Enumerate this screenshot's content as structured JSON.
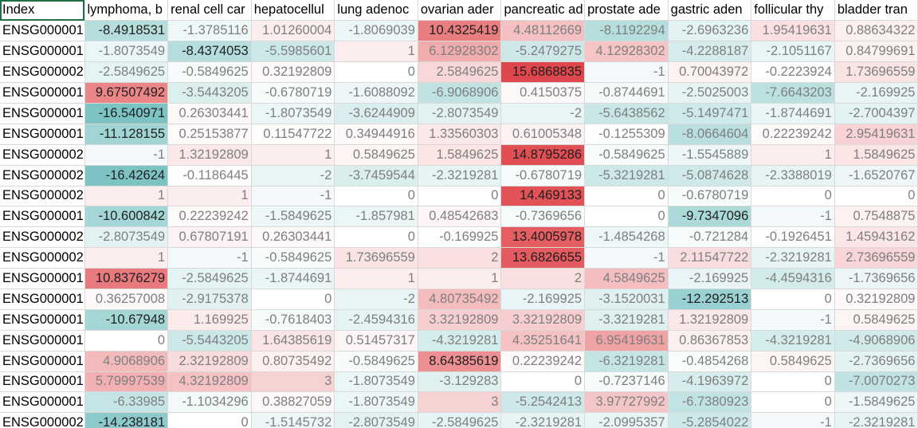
{
  "headers": [
    "Index",
    "lymphoma, b",
    "renal cell car",
    "hepatocellul",
    "lung adenoc",
    "ovarian ader",
    "pancreatic ad",
    "prostate ade",
    "gastric aden",
    "follicular thy",
    "bladder tran"
  ],
  "rows": [
    {
      "index": "ENSG000001",
      "values": [
        "-8.4918531",
        "-1.3785116",
        "1.01260004",
        "-1.8069039",
        "10.4325419",
        "4.48112669",
        "-8.1192294",
        "-2.6963236",
        "1.95419631",
        "0.88634322"
      ],
      "v": [
        -8.4918531,
        -1.3785116,
        1.01260004,
        -1.8069039,
        10.4325419,
        4.48112669,
        -8.1192294,
        -2.6963236,
        1.95419631,
        0.88634322
      ]
    },
    {
      "index": "ENSG000001",
      "values": [
        "-1.8073549",
        "-8.4374053",
        "-5.5985601",
        "1",
        "6.12928302",
        "-5.2479275",
        "4.12928302",
        "-4.2288187",
        "-2.1051167",
        "0.84799691"
      ],
      "v": [
        -1.8073549,
        -8.4374053,
        -5.5985601,
        1,
        6.12928302,
        -5.2479275,
        4.12928302,
        -4.2288187,
        -2.1051167,
        0.84799691
      ]
    },
    {
      "index": "ENSG000002",
      "values": [
        "-2.5849625",
        "-0.5849625",
        "0.32192809",
        "0",
        "2.5849625",
        "15.6868835",
        "-1",
        "0.70043972",
        "-0.2223924",
        "1.73696559"
      ],
      "v": [
        -2.5849625,
        -0.5849625,
        0.32192809,
        0,
        2.5849625,
        15.6868835,
        -1,
        0.70043972,
        -0.2223924,
        1.73696559
      ]
    },
    {
      "index": "ENSG000001",
      "values": [
        "9.67507492",
        "-3.5443205",
        "-0.6780719",
        "-1.6088092",
        "-6.9068906",
        "0.4150375",
        "-0.8744691",
        "-2.5025003",
        "-7.6643203",
        "-2.169925"
      ],
      "v": [
        9.67507492,
        -3.5443205,
        -0.6780719,
        -1.6088092,
        -6.9068906,
        0.4150375,
        -0.8744691,
        -2.5025003,
        -7.6643203,
        -2.169925
      ]
    },
    {
      "index": "ENSG000001",
      "values": [
        "-16.540971",
        "0.26303441",
        "-1.8073549",
        "-3.6244909",
        "-2.8073549",
        "-2",
        "-5.6438562",
        "-5.1497471",
        "-1.8744691",
        "-2.7004397"
      ],
      "v": [
        -16.540971,
        0.26303441,
        -1.8073549,
        -3.6244909,
        -2.8073549,
        -2,
        -5.6438562,
        -5.1497471,
        -1.8744691,
        -2.7004397
      ]
    },
    {
      "index": "ENSG000001",
      "values": [
        "-11.128155",
        "0.25153877",
        "0.11547722",
        "0.34944916",
        "1.33560303",
        "0.61005348",
        "-0.1255309",
        "-8.0664604",
        "0.22239242",
        "2.95419631"
      ],
      "v": [
        -11.128155,
        0.25153877,
        0.11547722,
        0.34944916,
        1.33560303,
        0.61005348,
        -0.1255309,
        -8.0664604,
        0.22239242,
        2.95419631
      ]
    },
    {
      "index": "ENSG000002",
      "values": [
        "-1",
        "1.32192809",
        "1",
        "0.5849625",
        "1.5849625",
        "14.8795286",
        "-0.5849625",
        "-1.5545889",
        "1",
        "1.5849625"
      ],
      "v": [
        -1,
        1.32192809,
        1,
        0.5849625,
        1.5849625,
        14.8795286,
        -0.5849625,
        -1.5545889,
        1,
        1.5849625
      ]
    },
    {
      "index": "ENSG000002",
      "values": [
        "-16.42624",
        "-0.1186445",
        "-2",
        "-3.7459544",
        "-2.3219281",
        "-0.6780719",
        "-5.3219281",
        "-5.0874628",
        "-2.3388019",
        "-1.6520767"
      ],
      "v": [
        -16.42624,
        -0.1186445,
        -2,
        -3.7459544,
        -2.3219281,
        -0.6780719,
        -5.3219281,
        -5.0874628,
        -2.3388019,
        -1.6520767
      ]
    },
    {
      "index": "ENSG000002",
      "values": [
        "1",
        "1",
        "-1",
        "0",
        "0",
        "14.469133",
        "0",
        "-0.6780719",
        "0",
        "0"
      ],
      "v": [
        1,
        1,
        -1,
        0,
        0,
        14.469133,
        0,
        -0.6780719,
        0,
        0
      ]
    },
    {
      "index": "ENSG000001",
      "values": [
        "-10.600842",
        "0.22239242",
        "-1.5849625",
        "-1.857981",
        "0.48542683",
        "-0.7369656",
        "0",
        "-9.7347096",
        "-1",
        "0.7548875"
      ],
      "v": [
        -10.600842,
        0.22239242,
        -1.5849625,
        -1.857981,
        0.48542683,
        -0.7369656,
        0,
        -9.7347096,
        -1,
        0.7548875
      ]
    },
    {
      "index": "ENSG000002",
      "values": [
        "-2.8073549",
        "0.67807191",
        "0.26303441",
        "0",
        "-0.169925",
        "13.4005978",
        "-1.4854268",
        "-0.721284",
        "-0.1926451",
        "1.45943162"
      ],
      "v": [
        -2.8073549,
        0.67807191,
        0.26303441,
        0,
        -0.169925,
        13.4005978,
        -1.4854268,
        -0.721284,
        -0.1926451,
        1.45943162
      ]
    },
    {
      "index": "ENSG000002",
      "values": [
        "1",
        "-1",
        "-0.5849625",
        "1.73696559",
        "2",
        "13.6826655",
        "-1",
        "2.11547722",
        "-2.3219281",
        "2.73696559"
      ],
      "v": [
        1,
        -1,
        -0.5849625,
        1.73696559,
        2,
        13.6826655,
        -1,
        2.11547722,
        -2.3219281,
        2.73696559
      ]
    },
    {
      "index": "ENSG000001",
      "values": [
        "10.8376279",
        "-2.5849625",
        "-1.8744691",
        "1",
        "1",
        "2",
        "4.5849625",
        "-2.169925",
        "-4.4594316",
        "-1.7369656"
      ],
      "v": [
        10.8376279,
        -2.5849625,
        -1.8744691,
        1,
        1,
        2,
        4.5849625,
        -2.169925,
        -4.4594316,
        -1.7369656
      ]
    },
    {
      "index": "ENSG000001",
      "values": [
        "0.36257008",
        "-2.9175378",
        "0",
        "-2",
        "4.80735492",
        "-2.169925",
        "-3.1520031",
        "-12.292513",
        "0",
        "0.32192809"
      ],
      "v": [
        0.36257008,
        -2.9175378,
        0,
        -2,
        4.80735492,
        -2.169925,
        -3.1520031,
        -12.292513,
        0,
        0.32192809
      ]
    },
    {
      "index": "ENSG000001",
      "values": [
        "-10.67948",
        "1.169925",
        "-0.7618403",
        "-2.4594316",
        "3.32192809",
        "3.32192809",
        "-3.3219281",
        "1.32192809",
        "-1",
        "0.5849625"
      ],
      "v": [
        -10.67948,
        1.169925,
        -0.7618403,
        -2.4594316,
        3.32192809,
        3.32192809,
        -3.3219281,
        1.32192809,
        -1,
        0.5849625
      ]
    },
    {
      "index": "ENSG000001",
      "values": [
        "0",
        "-5.5443205",
        "1.64385619",
        "0.51457317",
        "-4.3219281",
        "4.35251641",
        "6.95419631",
        "0.86367853",
        "-4.3219281",
        "-4.9068906"
      ],
      "v": [
        0,
        -5.5443205,
        1.64385619,
        0.51457317,
        -4.3219281,
        4.35251641,
        6.95419631,
        0.86367853,
        -4.3219281,
        -4.9068906
      ]
    },
    {
      "index": "ENSG000001",
      "values": [
        "4.9068906",
        "2.32192809",
        "0.80735492",
        "-0.5849625",
        "8.64385619",
        "0.22239242",
        "-6.3219281",
        "-0.4854268",
        "0.5849625",
        "-2.7369656"
      ],
      "v": [
        4.9068906,
        2.32192809,
        0.80735492,
        -0.5849625,
        8.64385619,
        0.22239242,
        -6.3219281,
        -0.4854268,
        0.5849625,
        -2.7369656
      ]
    },
    {
      "index": "ENSG000001",
      "values": [
        "5.79997539",
        "4.32192809",
        "3",
        "-1.8073549",
        "-3.129283",
        "0",
        "-0.7237146",
        "-4.1963972",
        "0",
        "-7.0070273"
      ],
      "v": [
        5.79997539,
        4.32192809,
        3,
        -1.8073549,
        -3.129283,
        0,
        -0.7237146,
        -4.1963972,
        0,
        -7.0070273
      ]
    },
    {
      "index": "ENSG000001",
      "values": [
        "-6.33985",
        "-1.1034296",
        "0.38827059",
        "-1.8073549",
        "3",
        "-5.2542413",
        "3.97727992",
        "-6.7380923",
        "0",
        "-1.5849625"
      ],
      "v": [
        -6.33985,
        -1.1034296,
        0.38827059,
        -1.8073549,
        3,
        -5.2542413,
        3.97727992,
        -6.7380923,
        0,
        -1.5849625
      ]
    },
    {
      "index": "ENSG000002",
      "values": [
        "-14.238181",
        "0",
        "-1.5145732",
        "-2.8073549",
        "-2.5849625",
        "-2.3219281",
        "-2.0995357",
        "-5.2854022",
        "-1",
        "-2.3219281"
      ],
      "v": [
        -14.238181,
        0,
        -1.5145732,
        -2.8073549,
        -2.5849625,
        -2.3219281,
        -2.0995357,
        -5.2854022,
        -1,
        -2.3219281
      ]
    }
  ],
  "colors": {
    "positive_max": "#e0474c",
    "negative_max": "#7cc3c4",
    "neutral": "#ffffff",
    "grid": "#d9d9d9",
    "selected_border": "#1e7145"
  },
  "scale": {
    "pos_max": 15.6868835,
    "neg_min": -16.540971
  }
}
